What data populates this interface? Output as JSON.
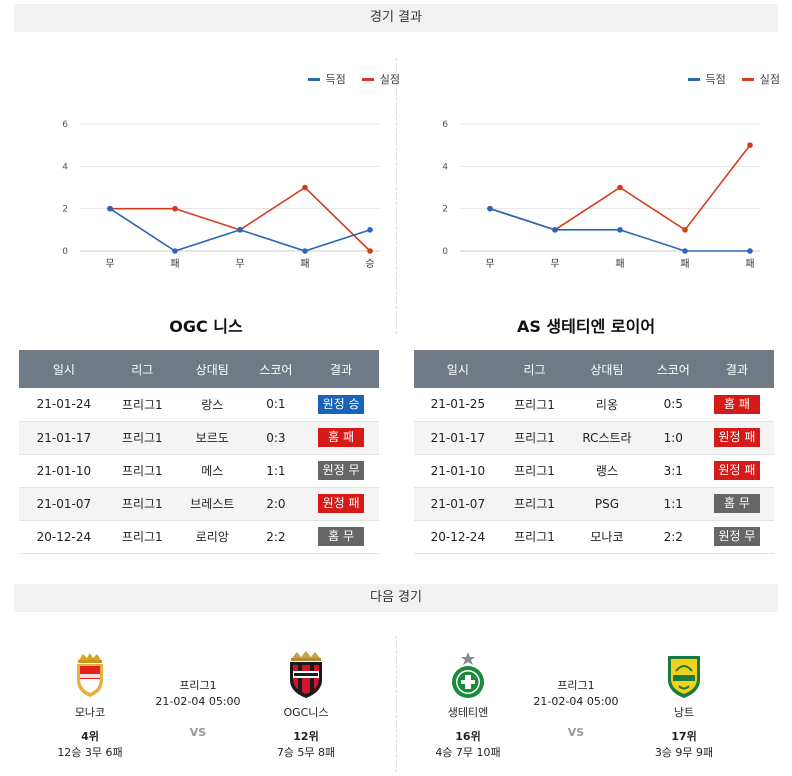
{
  "sections": {
    "results_title": "경기 결과",
    "next_title": "다음 경기"
  },
  "legend": {
    "scored": "득점",
    "conceded": "실점"
  },
  "colors": {
    "scored": "#2b66b8",
    "conceded": "#d53c1c",
    "away_win": "#1763b5",
    "loss": "#d51a1a",
    "draw": "#666666",
    "header": "#6f7a84"
  },
  "chart_data": [
    {
      "type": "line",
      "categories": [
        "무",
        "패",
        "무",
        "패",
        "승"
      ],
      "series": [
        {
          "name": "득점",
          "values": [
            2,
            0,
            1,
            0,
            1
          ]
        },
        {
          "name": "실점",
          "values": [
            2,
            2,
            1,
            3,
            0
          ]
        }
      ],
      "yticks": [
        0,
        2,
        4,
        6
      ],
      "ylim": [
        0,
        6
      ],
      "grid": true,
      "legend_position": "top-right"
    },
    {
      "type": "line",
      "categories": [
        "무",
        "무",
        "패",
        "패",
        "패"
      ],
      "series": [
        {
          "name": "득점",
          "values": [
            2,
            1,
            1,
            0,
            0
          ]
        },
        {
          "name": "실점",
          "values": [
            2,
            1,
            3,
            1,
            5
          ]
        }
      ],
      "yticks": [
        0,
        2,
        4,
        6
      ],
      "ylim": [
        0,
        6
      ],
      "grid": true,
      "legend_position": "top-right"
    }
  ],
  "teams": {
    "left": "OGC 니스",
    "right": "AS 생테티엔 로이어"
  },
  "table_headers": [
    "일시",
    "리그",
    "상대팀",
    "스코어",
    "결과"
  ],
  "left_results": [
    {
      "date": "21-01-24",
      "league": "프리그1",
      "opponent": "랑스",
      "score": "0:1",
      "result": "원정 승",
      "type": "away-win"
    },
    {
      "date": "21-01-17",
      "league": "프리그1",
      "opponent": "보르도",
      "score": "0:3",
      "result": "홈 패",
      "type": "loss"
    },
    {
      "date": "21-01-10",
      "league": "프리그1",
      "opponent": "메스",
      "score": "1:1",
      "result": "원정 무",
      "type": "draw"
    },
    {
      "date": "21-01-07",
      "league": "프리그1",
      "opponent": "브레스트",
      "score": "2:0",
      "result": "원정 패",
      "type": "loss"
    },
    {
      "date": "20-12-24",
      "league": "프리그1",
      "opponent": "로리앙",
      "score": "2:2",
      "result": "홈 무",
      "type": "draw"
    }
  ],
  "right_results": [
    {
      "date": "21-01-25",
      "league": "프리그1",
      "opponent": "리옹",
      "score": "0:5",
      "result": "홈 패",
      "type": "loss"
    },
    {
      "date": "21-01-17",
      "league": "프리그1",
      "opponent": "RC스트라",
      "score": "1:0",
      "result": "원정 패",
      "type": "loss"
    },
    {
      "date": "21-01-10",
      "league": "프리그1",
      "opponent": "랭스",
      "score": "3:1",
      "result": "원정 패",
      "type": "loss"
    },
    {
      "date": "21-01-07",
      "league": "프리그1",
      "opponent": "PSG",
      "score": "1:1",
      "result": "홈 무",
      "type": "draw"
    },
    {
      "date": "20-12-24",
      "league": "프리그1",
      "opponent": "모나코",
      "score": "2:2",
      "result": "원정 무",
      "type": "draw"
    }
  ],
  "next_matches": [
    {
      "home": {
        "name": "모나코",
        "rank": "4위",
        "record": "12승 3무 6패",
        "crest": "monaco-crest-icon"
      },
      "away": {
        "name": "OGC니스",
        "rank": "12위",
        "record": "7승 5무 8패",
        "crest": "nice-crest-icon"
      },
      "league": "프리그1",
      "datetime": "21-02-04 05:00",
      "vs": "VS"
    },
    {
      "home": {
        "name": "생테티엔",
        "rank": "16위",
        "record": "4승 7무 10패",
        "crest": "saint-etienne-crest-icon"
      },
      "away": {
        "name": "낭트",
        "rank": "17위",
        "record": "3승 9무 9패",
        "crest": "nantes-crest-icon"
      },
      "league": "프리그1",
      "datetime": "21-02-04 05:00",
      "vs": "VS"
    }
  ]
}
